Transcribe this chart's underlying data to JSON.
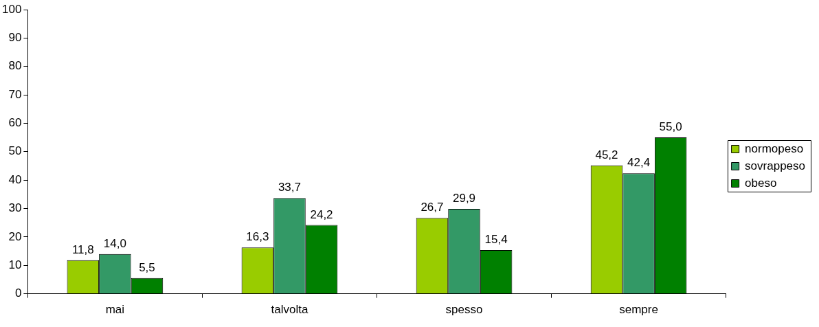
{
  "chart_data": {
    "type": "bar",
    "categories": [
      "mai",
      "talvolta",
      "spesso",
      "sempre"
    ],
    "series": [
      {
        "name": "normopeso",
        "color": "#99cc00",
        "values": [
          11.8,
          16.3,
          26.7,
          45.2
        ],
        "value_labels": [
          "11,8",
          "16,3",
          "26,7",
          "45,2"
        ]
      },
      {
        "name": "sovrappeso",
        "color": "#339966",
        "values": [
          14.0,
          33.7,
          29.9,
          42.4
        ],
        "value_labels": [
          "14,0",
          "33,7",
          "29,9",
          "42,4"
        ]
      },
      {
        "name": "obeso",
        "color": "#008000",
        "values": [
          5.5,
          24.2,
          15.4,
          55.0
        ],
        "value_labels": [
          "5,5",
          "24,2",
          "15,4",
          "55,0"
        ]
      }
    ],
    "ylim": [
      0,
      100
    ],
    "yticks": [
      0,
      10,
      20,
      30,
      40,
      50,
      60,
      70,
      80,
      90,
      100
    ],
    "grid": false,
    "legend": "right"
  }
}
